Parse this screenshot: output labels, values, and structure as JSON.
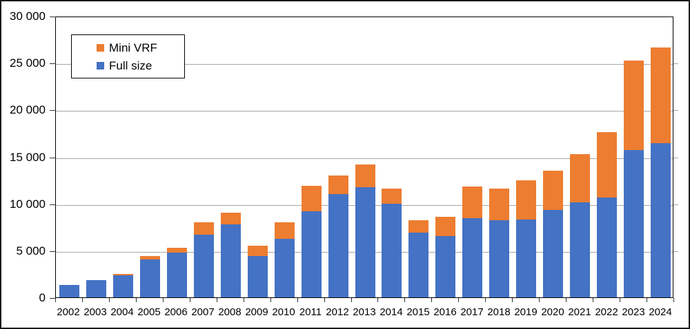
{
  "chart_data": {
    "type": "bar",
    "stacked": true,
    "title": "",
    "xlabel": "",
    "ylabel": "",
    "grid": true,
    "legend_position": "inside-top-left",
    "ylim": [
      0,
      30000
    ],
    "ytick_step": 5000,
    "ytick_values": [
      0,
      5000,
      10000,
      15000,
      20000,
      25000,
      30000
    ],
    "ytick_labels": [
      "0",
      "5 000",
      "10 000",
      "15 000",
      "20 000",
      "25 000",
      "30 000"
    ],
    "categories": [
      "2002",
      "2003",
      "2004",
      "2005",
      "2006",
      "2007",
      "2008",
      "2009",
      "2010",
      "2011",
      "2012",
      "2013",
      "2014",
      "2015",
      "2016",
      "2017",
      "2018",
      "2019",
      "2020",
      "2021",
      "2022",
      "2023",
      "2024"
    ],
    "series": [
      {
        "name": "Mini VRF",
        "color": "#ED7D31",
        "values": [
          0,
          0,
          150,
          350,
          550,
          1300,
          1250,
          1100,
          1750,
          2700,
          2000,
          2400,
          1650,
          1350,
          2050,
          3400,
          3400,
          4150,
          4150,
          5150,
          6950,
          9500,
          10200
        ]
      },
      {
        "name": "Full size",
        "color": "#4472C4",
        "values": [
          1300,
          1800,
          2350,
          4000,
          4800,
          6700,
          7800,
          4400,
          6200,
          9200,
          11000,
          11700,
          10000,
          6900,
          6550,
          8450,
          8200,
          8300,
          9300,
          10150,
          10600,
          15700,
          16400
        ]
      }
    ]
  },
  "style_colors": {
    "gridline": "#a6a6a6",
    "axis_frame": "#000000",
    "outer_border": "#1a1a1a",
    "background": "#ffffff"
  }
}
